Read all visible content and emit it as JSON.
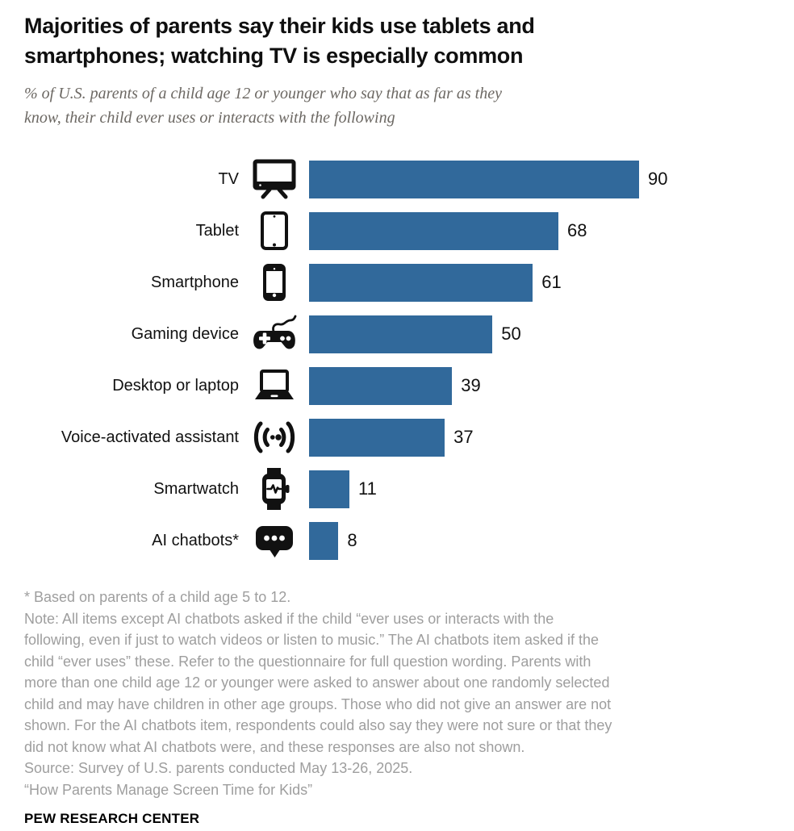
{
  "header": {
    "title_lines": [
      "Majorities of parents say their kids use tablets and",
      "smartphones; watching TV is especially common"
    ],
    "subtitle_lines": [
      "% of U.S. parents of a child age 12 or younger who say that as far as they",
      "know, their child ever uses or interacts with the following"
    ]
  },
  "chart_data": {
    "type": "bar",
    "orientation": "horizontal",
    "title": "Majorities of parents say their kids use tablets and smartphones; watching TV is especially common",
    "subtitle": "% of U.S. parents of a child age 12 or younger who say that as far as they know, their child ever uses or interacts with the following",
    "categories": [
      "TV",
      "Tablet",
      "Smartphone",
      "Gaming device",
      "Desktop or laptop",
      "Voice-activated assistant",
      "Smartwatch",
      "AI chatbots*"
    ],
    "values": [
      90,
      68,
      61,
      50,
      39,
      37,
      11,
      8
    ],
    "icons": [
      "tv-icon",
      "tablet-icon",
      "smartphone-icon",
      "gamepad-icon",
      "laptop-icon",
      "voice-assistant-icon",
      "smartwatch-icon",
      "chat-bubble-icon"
    ],
    "bar_color": "#31699B",
    "xlim": [
      0,
      100
    ],
    "value_labels": true,
    "grid": false,
    "legend": false
  },
  "notes": {
    "asterisk_line": "* Based on parents of a child age 5 to 12.",
    "note_lines": [
      "Note: All items except AI chatbots asked if the child “ever uses or interacts with the",
      "following, even if just to watch videos or listen to music.” The AI chatbots item asked if the",
      "child “ever uses” these. Refer to the questionnaire for full question wording. Parents with",
      "more than one child age 12 or younger were asked to answer about one randomly selected",
      "child and may have children in other age groups. Those who did not give an answer are not",
      "shown. For the AI chatbots item, respondents could also say they were not sure or that they",
      "did not know what AI chatbots were, and these responses are also not shown."
    ],
    "source_line": "Source: Survey of U.S. parents conducted May 13-26, 2025.",
    "publication_line": "“How Parents Manage Screen Time for Kids”"
  },
  "footer": {
    "brand": "PEW RESEARCH CENTER"
  }
}
